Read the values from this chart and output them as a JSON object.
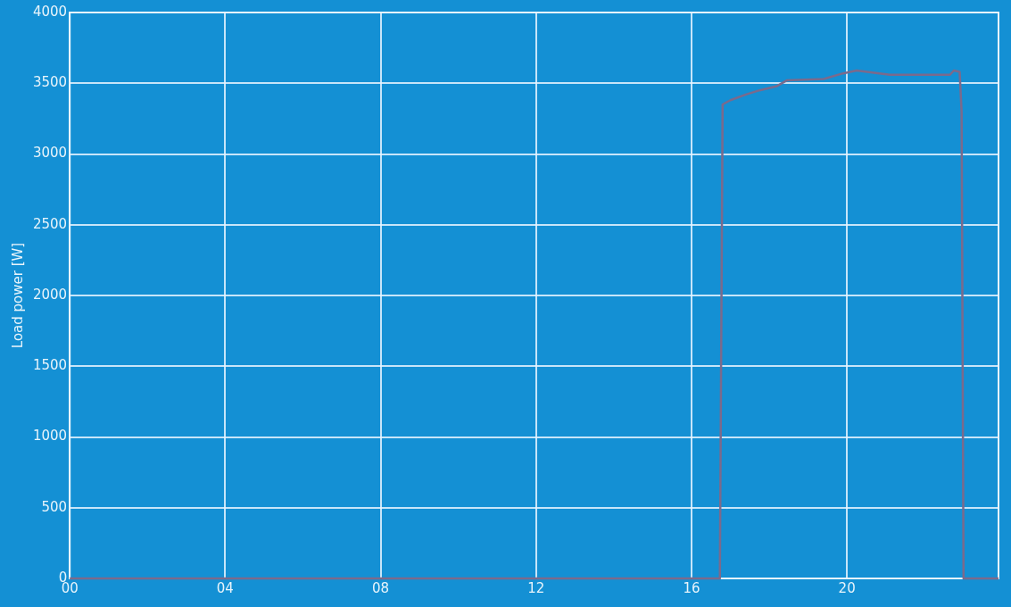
{
  "chart_data": {
    "type": "line",
    "ylabel": "Load power [W]",
    "x": [
      0,
      16.73,
      16.8,
      17.0,
      17.4,
      17.75,
      18.2,
      18.45,
      19.4,
      19.9,
      20.25,
      21.1,
      22.65,
      22.75,
      22.9,
      22.95,
      23.0,
      23.9
    ],
    "series": [
      {
        "color": "#7b6a8c",
        "values": [
          0,
          0,
          3350,
          3380,
          3420,
          3450,
          3480,
          3520,
          3530,
          3570,
          3590,
          3560,
          3560,
          3590,
          3580,
          3300,
          0,
          0
        ]
      }
    ],
    "xlim": [
      0,
      23.9
    ],
    "xticks": [
      {
        "value": 0,
        "label": "00"
      },
      {
        "value": 4,
        "label": "04"
      },
      {
        "value": 8,
        "label": "08"
      },
      {
        "value": 12,
        "label": "12"
      },
      {
        "value": 16,
        "label": "16"
      },
      {
        "value": 20,
        "label": "20"
      }
    ],
    "ylim": [
      0,
      4000
    ],
    "yticks": [
      0,
      500,
      1000,
      1500,
      2000,
      2500,
      3000,
      3500,
      4000
    ],
    "grid": true,
    "marker": "none",
    "line_style": "solid",
    "legend": false
  }
}
